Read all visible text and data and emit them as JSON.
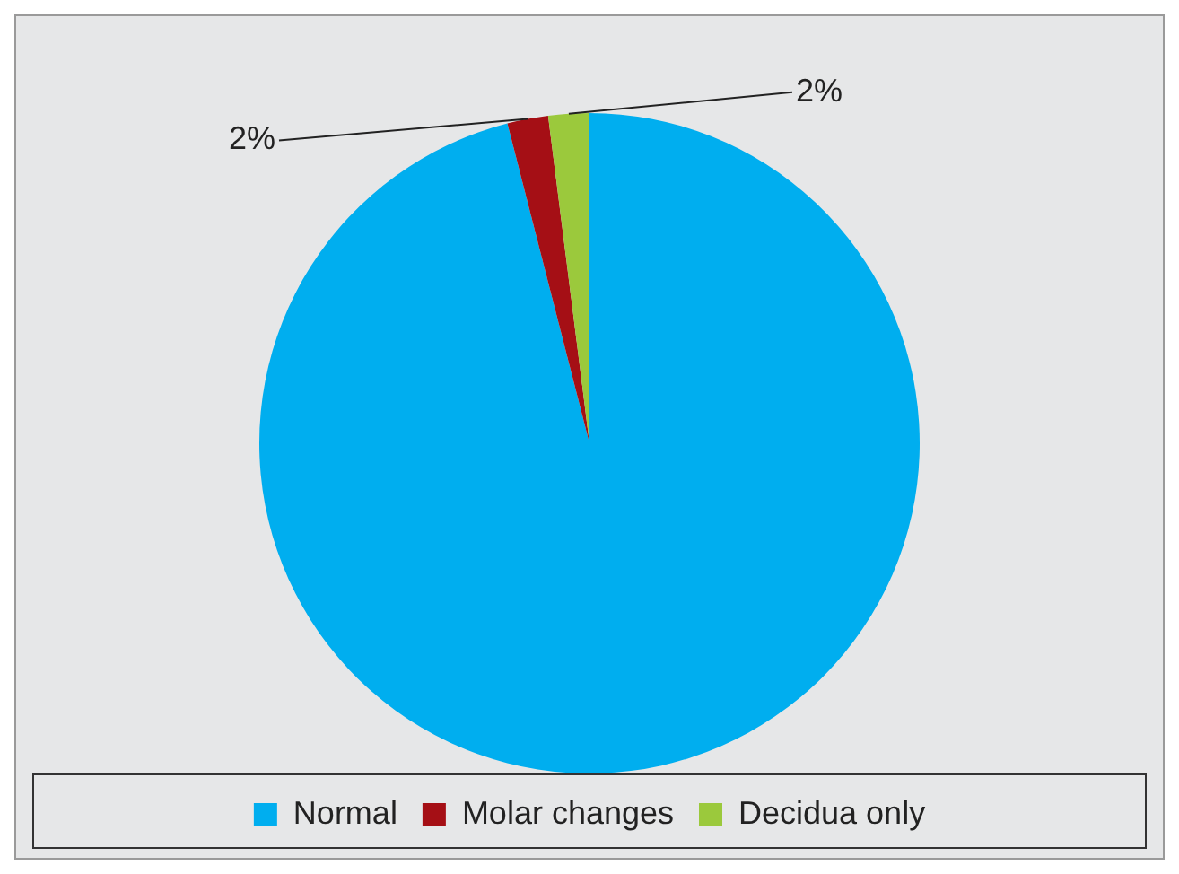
{
  "chart_data": {
    "type": "pie",
    "categories": [
      "Normal",
      "Molar changes",
      "Decidua only"
    ],
    "values": [
      96,
      2,
      2
    ],
    "colors": [
      "#00aeef",
      "#a50f15",
      "#9bc93c"
    ],
    "value_labels": [
      null,
      "2%",
      "2%"
    ],
    "legend": "bottom"
  }
}
